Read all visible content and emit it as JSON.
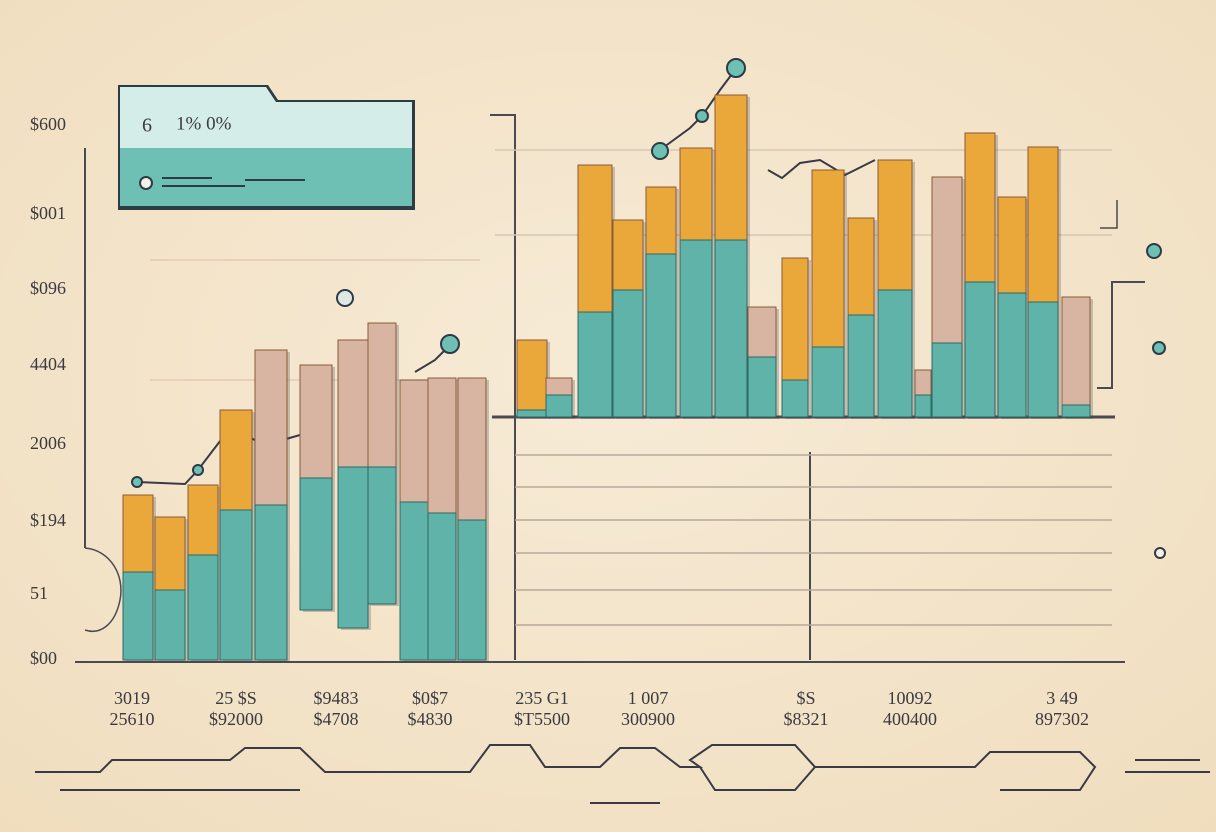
{
  "card": {
    "number": "6",
    "percent": "1% 0%"
  },
  "y_labels": [
    "$600",
    "$001",
    "$096",
    "4404",
    "2006",
    "$194",
    "51",
    "$00"
  ],
  "x_labels": [
    [
      "3019",
      "25610"
    ],
    [
      "25 $S",
      "$92000"
    ],
    [
      "$9483",
      "$4708"
    ],
    [
      "$0$7",
      "$4830"
    ],
    [
      "235 G1",
      "$T5500"
    ],
    [
      "1 007",
      "300900"
    ],
    [
      "$S",
      "$8321"
    ],
    [
      "10092",
      "400400"
    ],
    [
      "3 49",
      "897302"
    ]
  ]
}
